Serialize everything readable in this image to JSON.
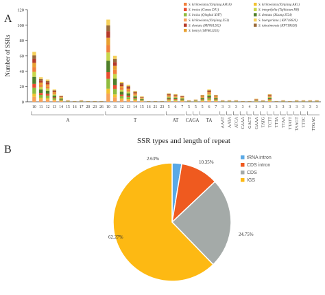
{
  "panel_a_label": "A",
  "panel_b_label": "B",
  "chart_data": [
    {
      "type": "bar",
      "stacked": true,
      "title": "",
      "xlabel": "SSR types and length of repeat",
      "ylabel": "Number of SSRs",
      "ylim": [
        0,
        120
      ],
      "yticks": [
        0,
        20,
        40,
        60,
        80,
        100,
        120
      ],
      "grid": false,
      "legend_position": "top-right",
      "legend": [
        {
          "name": "S. kirilowiana (Xinjiang AH18)",
          "color": "#f0803c"
        },
        {
          "name": "S. kirilowiana (Xinjiang AK1)",
          "color": "#f2c230"
        },
        {
          "name": "S. incisa (Gansu DJ1)",
          "color": "#e94c2f"
        },
        {
          "name": "S. integrifolia (Tajikistan H8)",
          "color": "#c7d64a"
        },
        {
          "name": "S. incisa (Qinghai XH7)",
          "color": "#8fbc3f"
        },
        {
          "name": "S. dentata (Xizang ZG4)",
          "color": "#4f7f2a"
        },
        {
          "name": "S. kirilowiana (Xinjiang Z53)",
          "color": "#f7a25a"
        },
        {
          "name": "S. buergeriana ( KP718626)",
          "color": "#f5d05a"
        },
        {
          "name": "S. dentata (MF861202)",
          "color": "#b53a2a"
        },
        {
          "name": "S. takesimensis (KP718628)",
          "color": "#9a6a3a"
        },
        {
          "name": "S. henryi (MF861203)",
          "color": "#e8a030"
        }
      ],
      "categories": [
        "10",
        "11",
        "12",
        "13",
        "14",
        "15",
        "16",
        "17",
        "20",
        "23",
        "26",
        "10",
        "11",
        "12",
        "13",
        "14",
        "15",
        "16",
        "21",
        "23",
        "5",
        "6",
        "7",
        "5",
        "5",
        "5",
        "6",
        "7",
        "3",
        "3",
        "3",
        "3",
        "4",
        "3",
        "3",
        "3",
        "3",
        "3",
        "3",
        "3",
        "3",
        "3",
        "3"
      ],
      "totals": [
        65,
        32,
        29,
        16,
        8,
        2,
        1,
        2,
        1,
        1,
        1,
        107,
        60,
        26,
        22,
        14,
        7,
        1,
        1,
        1,
        11,
        10,
        8,
        2,
        3,
        9,
        16,
        9,
        2,
        2,
        2,
        1,
        1,
        4,
        2,
        10,
        1,
        2,
        1,
        2,
        2,
        2,
        2
      ],
      "groups": [
        {
          "label": "A",
          "start": 0,
          "end": 10
        },
        {
          "label": "T",
          "start": 11,
          "end": 19
        },
        {
          "label": "AT",
          "start": 20,
          "end": 22
        },
        {
          "label": "CA",
          "start": 23,
          "end": 23,
          "overline": true
        },
        {
          "label": "GA",
          "start": 24,
          "end": 24
        },
        {
          "label": "TA",
          "start": 25,
          "end": 27
        },
        {
          "label": "AAAT",
          "start": 28,
          "end": 28,
          "overline": true
        },
        {
          "label": "AATA",
          "start": 29,
          "end": 29,
          "overline": true
        },
        {
          "label": "ATCA",
          "start": 30,
          "end": 30
        },
        {
          "label": "CAAA",
          "start": 31,
          "end": 31
        },
        {
          "label": "GACT",
          "start": 32,
          "end": 32
        },
        {
          "label": "GAAA",
          "start": 33,
          "end": 33,
          "overline": true
        },
        {
          "label": "TATG",
          "start": 34,
          "end": 34
        },
        {
          "label": "TCTT",
          "start": 35,
          "end": 35
        },
        {
          "label": "TTTA",
          "start": 36,
          "end": 36
        },
        {
          "label": "TTAA",
          "start": 37,
          "end": 37
        },
        {
          "label": "TTATT",
          "start": 38,
          "end": 38
        },
        {
          "label": "TAAGT",
          "start": 39,
          "end": 39
        },
        {
          "label": "TTTC",
          "start": 40,
          "end": 40
        },
        {
          "label": "TTGAC",
          "start": 41,
          "end": 42
        }
      ]
    },
    {
      "type": "pie",
      "title": "",
      "legend_position": "right",
      "slices": [
        {
          "name": "tRNA intron",
          "value": 2.63,
          "label": "2.63%",
          "color": "#5aa9e6"
        },
        {
          "name": "CDS intron",
          "value": 10.35,
          "label": "10.35%",
          "color": "#ef5a1f"
        },
        {
          "name": "CDS",
          "value": 24.75,
          "label": "24.75%",
          "color": "#a4aaa8"
        },
        {
          "name": "IGS",
          "value": 62.27,
          "label": "62.27%",
          "color": "#fdb913"
        }
      ]
    }
  ]
}
